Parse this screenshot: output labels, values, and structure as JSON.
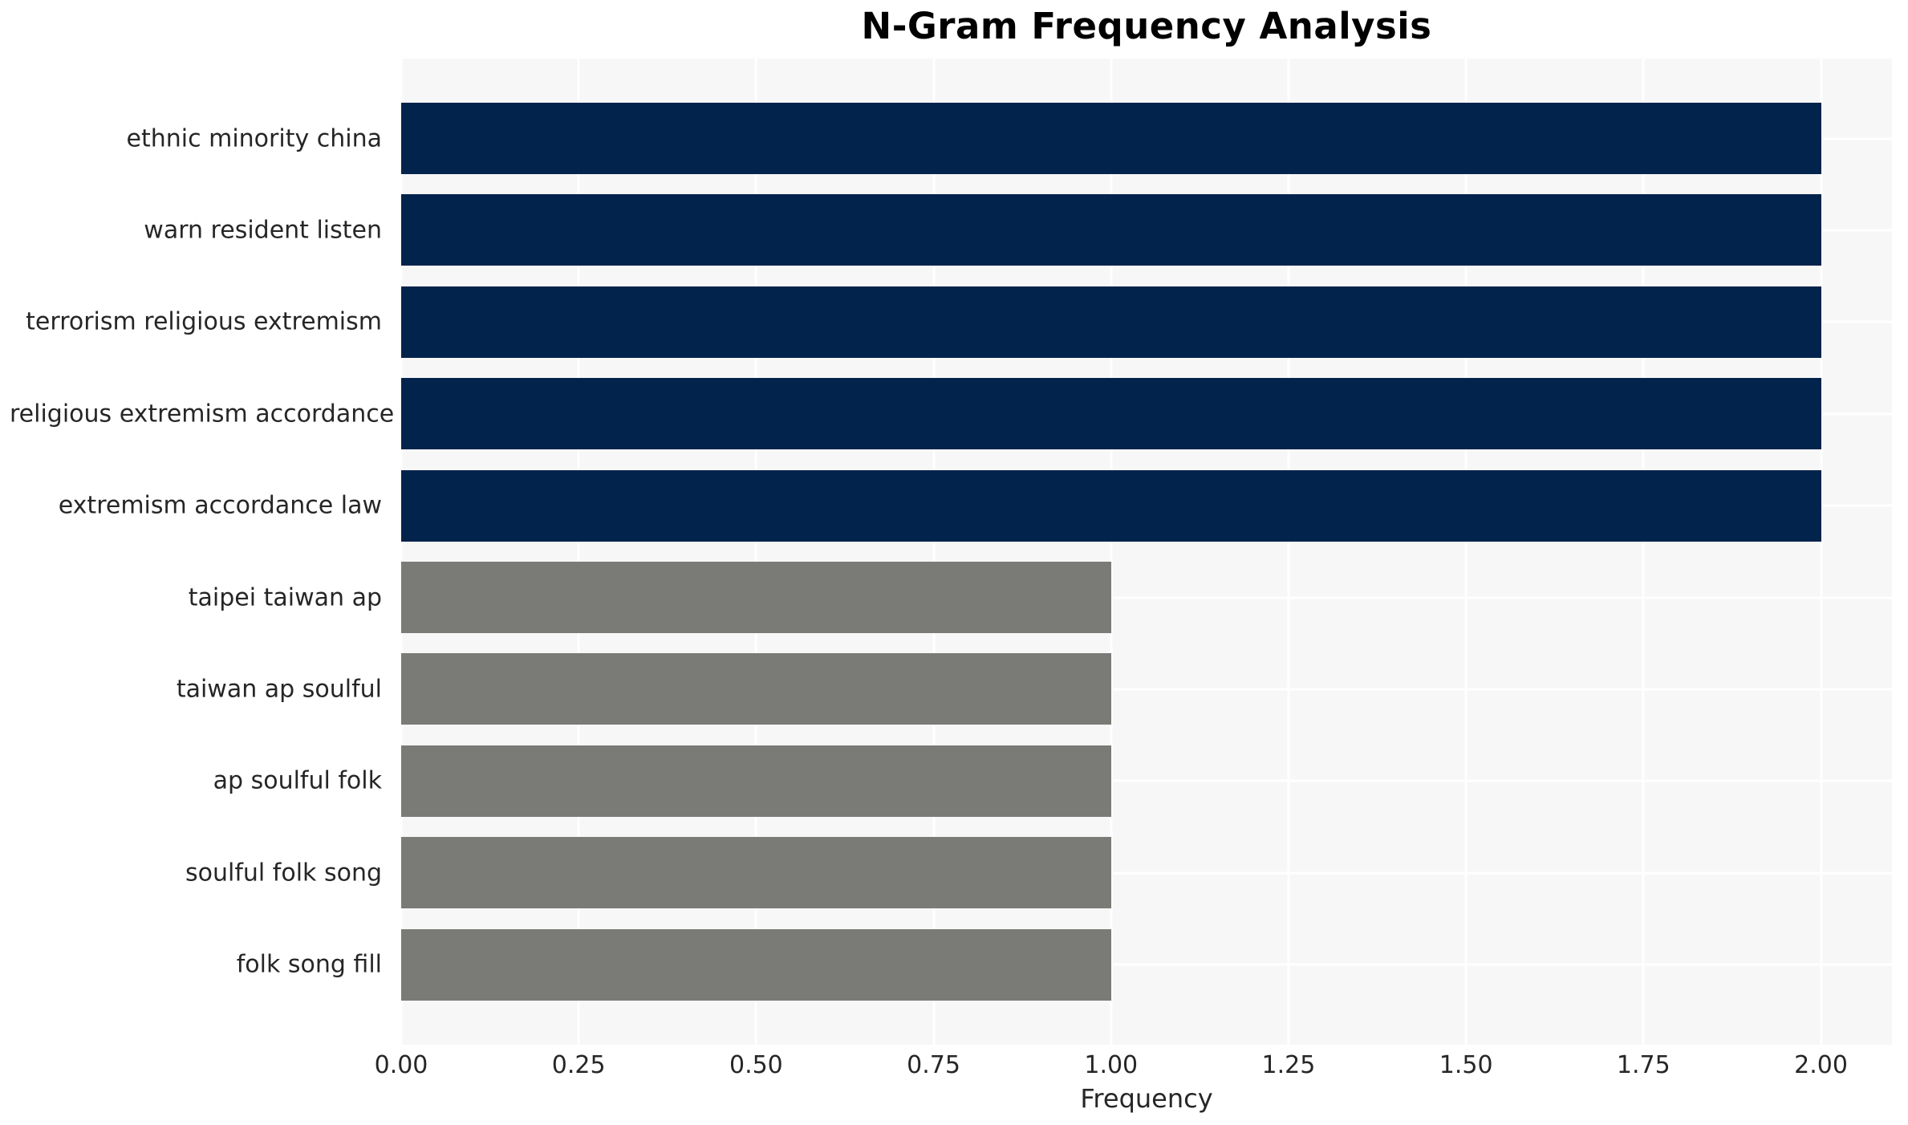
{
  "title": "N-Gram Frequency Analysis",
  "colors": {
    "bar_high": "#02234c",
    "bar_low": "#7a7a77",
    "plot_bg": "#f7f7f7",
    "grid": "#ffffff",
    "tick_text": "#262626",
    "title_text": "#000000",
    "page_bg": "#ffffff"
  },
  "chart_data": {
    "type": "bar",
    "orientation": "horizontal",
    "title": "N-Gram Frequency Analysis",
    "xlabel": "Frequency",
    "ylabel": "",
    "categories": [
      "ethnic minority china",
      "warn resident listen",
      "terrorism religious extremism",
      "religious extremism accordance",
      "extremism accordance law",
      "taipei taiwan ap",
      "taiwan ap soulful",
      "ap soulful folk",
      "soulful folk song",
      "folk song fill"
    ],
    "values": [
      2,
      2,
      2,
      2,
      2,
      1,
      1,
      1,
      1,
      1
    ],
    "bar_colors": [
      "#02234c",
      "#02234c",
      "#02234c",
      "#02234c",
      "#02234c",
      "#7a7a77",
      "#7a7a77",
      "#7a7a77",
      "#7a7a77",
      "#7a7a77"
    ],
    "xlim": [
      0,
      2.1
    ],
    "xticks": [
      {
        "value": 0.0,
        "label": "0.00"
      },
      {
        "value": 0.25,
        "label": "0.25"
      },
      {
        "value": 0.5,
        "label": "0.50"
      },
      {
        "value": 0.75,
        "label": "0.75"
      },
      {
        "value": 1.0,
        "label": "1.00"
      },
      {
        "value": 1.25,
        "label": "1.25"
      },
      {
        "value": 1.5,
        "label": "1.50"
      },
      {
        "value": 1.75,
        "label": "1.75"
      },
      {
        "value": 2.0,
        "label": "2.00"
      }
    ],
    "grid": true,
    "grid_color": "#ffffff",
    "legend": false
  }
}
